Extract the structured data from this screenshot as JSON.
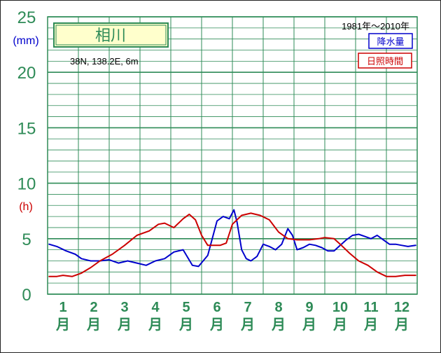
{
  "chart_data": {
    "type": "line",
    "title": "相川",
    "location": "38N, 138.2E, 6m",
    "period": "1981年～2010年",
    "y_unit_precip": "(mm)",
    "y_unit_sun": "(h)",
    "yticks": [
      "0",
      "5",
      "10",
      "15",
      "20",
      "25"
    ],
    "ylim": [
      0,
      25
    ],
    "months": [
      {
        "n": "1",
        "u": "月"
      },
      {
        "n": "2",
        "u": "月"
      },
      {
        "n": "3",
        "u": "月"
      },
      {
        "n": "4",
        "u": "月"
      },
      {
        "n": "5",
        "u": "月"
      },
      {
        "n": "6",
        "u": "月"
      },
      {
        "n": "7",
        "u": "月"
      },
      {
        "n": "8",
        "u": "月"
      },
      {
        "n": "9",
        "u": "月"
      },
      {
        "n": "10",
        "u": "月"
      },
      {
        "n": "11",
        "u": "月"
      },
      {
        "n": "12",
        "u": "月"
      }
    ],
    "xlim": [
      0.5,
      12.5
    ],
    "series": [
      {
        "name": "降水量",
        "color": "#0000cc",
        "points": [
          [
            0.55,
            4.5
          ],
          [
            0.8,
            4.3
          ],
          [
            1.1,
            3.9
          ],
          [
            1.4,
            3.6
          ],
          [
            1.6,
            3.2
          ],
          [
            1.9,
            3.0
          ],
          [
            2.2,
            3.0
          ],
          [
            2.5,
            3.1
          ],
          [
            2.8,
            2.8
          ],
          [
            3.1,
            3.0
          ],
          [
            3.4,
            2.8
          ],
          [
            3.7,
            2.6
          ],
          [
            4.0,
            3.0
          ],
          [
            4.3,
            3.2
          ],
          [
            4.6,
            3.8
          ],
          [
            4.9,
            4.0
          ],
          [
            5.2,
            2.6
          ],
          [
            5.4,
            2.5
          ],
          [
            5.7,
            3.5
          ],
          [
            6.0,
            6.6
          ],
          [
            6.2,
            7.0
          ],
          [
            6.4,
            6.8
          ],
          [
            6.55,
            7.6
          ],
          [
            6.65,
            6.5
          ],
          [
            6.8,
            4.0
          ],
          [
            6.95,
            3.2
          ],
          [
            7.1,
            3.0
          ],
          [
            7.3,
            3.4
          ],
          [
            7.5,
            4.5
          ],
          [
            7.7,
            4.3
          ],
          [
            7.9,
            4.0
          ],
          [
            8.1,
            4.5
          ],
          [
            8.3,
            5.9
          ],
          [
            8.45,
            5.3
          ],
          [
            8.6,
            4.0
          ],
          [
            8.8,
            4.2
          ],
          [
            9.0,
            4.5
          ],
          [
            9.2,
            4.4
          ],
          [
            9.4,
            4.2
          ],
          [
            9.6,
            3.9
          ],
          [
            9.8,
            3.9
          ],
          [
            10.0,
            4.4
          ],
          [
            10.2,
            4.9
          ],
          [
            10.4,
            5.3
          ],
          [
            10.6,
            5.4
          ],
          [
            10.8,
            5.2
          ],
          [
            11.0,
            5.0
          ],
          [
            11.2,
            5.3
          ],
          [
            11.4,
            4.9
          ],
          [
            11.6,
            4.5
          ],
          [
            11.8,
            4.5
          ],
          [
            12.0,
            4.4
          ],
          [
            12.2,
            4.3
          ],
          [
            12.45,
            4.4
          ]
        ]
      },
      {
        "name": "日照時間",
        "color": "#cc0000",
        "points": [
          [
            0.55,
            1.6
          ],
          [
            0.8,
            1.6
          ],
          [
            1.0,
            1.7
          ],
          [
            1.3,
            1.6
          ],
          [
            1.6,
            1.9
          ],
          [
            1.9,
            2.4
          ],
          [
            2.2,
            3.0
          ],
          [
            2.6,
            3.6
          ],
          [
            3.0,
            4.4
          ],
          [
            3.4,
            5.3
          ],
          [
            3.8,
            5.7
          ],
          [
            4.1,
            6.3
          ],
          [
            4.3,
            6.4
          ],
          [
            4.6,
            6.0
          ],
          [
            4.9,
            6.8
          ],
          [
            5.1,
            7.2
          ],
          [
            5.3,
            6.7
          ],
          [
            5.5,
            5.3
          ],
          [
            5.7,
            4.4
          ],
          [
            5.9,
            4.4
          ],
          [
            6.1,
            4.4
          ],
          [
            6.3,
            4.6
          ],
          [
            6.5,
            6.3
          ],
          [
            6.8,
            7.1
          ],
          [
            7.1,
            7.3
          ],
          [
            7.4,
            7.1
          ],
          [
            7.7,
            6.7
          ],
          [
            8.0,
            5.6
          ],
          [
            8.3,
            5.0
          ],
          [
            8.6,
            4.9
          ],
          [
            9.0,
            4.9
          ],
          [
            9.3,
            5.0
          ],
          [
            9.5,
            5.1
          ],
          [
            9.8,
            5.0
          ],
          [
            10.0,
            4.5
          ],
          [
            10.3,
            3.7
          ],
          [
            10.6,
            3.0
          ],
          [
            10.9,
            2.6
          ],
          [
            11.2,
            2.0
          ],
          [
            11.5,
            1.6
          ],
          [
            11.8,
            1.6
          ],
          [
            12.1,
            1.7
          ],
          [
            12.45,
            1.7
          ]
        ]
      }
    ]
  },
  "legend": {
    "precip_label": "降水量",
    "sun_label": "日照時間"
  },
  "colors": {
    "grid": "#2e8b57",
    "title_bg": "#ffffcc",
    "precip": "#0000cc",
    "sun": "#cc0000"
  }
}
